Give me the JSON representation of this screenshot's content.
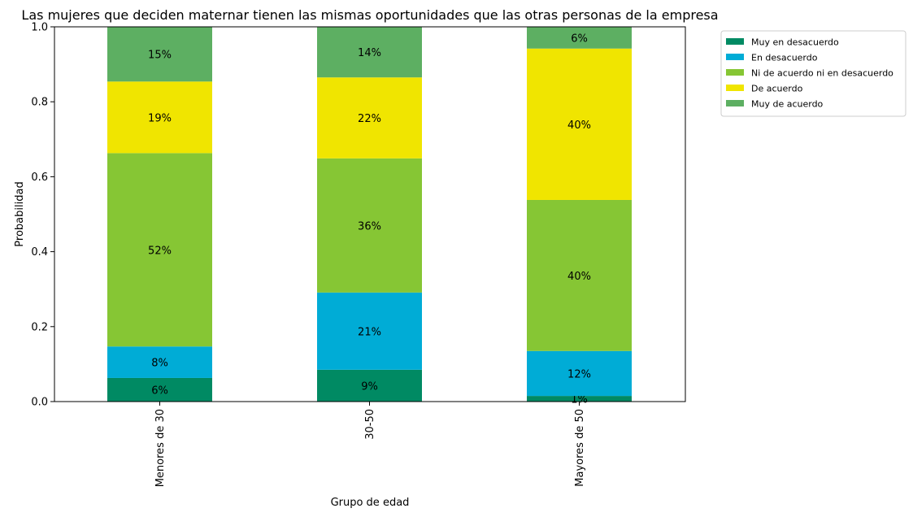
{
  "chart_data": {
    "type": "bar",
    "stacked": true,
    "title": "Las mujeres que deciden maternar tienen las mismas oportunidades que las otras personas de la empresa",
    "xlabel": "Grupo de edad",
    "ylabel": "Probabilidad",
    "ylim": [
      0,
      1
    ],
    "yticks": [
      "0.0",
      "0.2",
      "0.4",
      "0.6",
      "0.8",
      "1.0"
    ],
    "ytick_values": [
      0,
      0.2,
      0.4,
      0.6,
      0.8,
      1.0
    ],
    "categories": [
      "Menores de 30",
      "30-50",
      "Mayores de 50"
    ],
    "legend_position": "upper right outside",
    "series": [
      {
        "name": "Muy en desacuerdo",
        "color": "#008a63",
        "values": [
          0.063,
          0.085,
          0.015
        ],
        "labels": [
          "6%",
          "9%",
          "1%"
        ]
      },
      {
        "name": "En desacuerdo",
        "color": "#00acd6",
        "values": [
          0.084,
          0.206,
          0.12
        ],
        "labels": [
          "8%",
          "21%",
          "12%"
        ]
      },
      {
        "name": "Ni de acuerdo ni en desacuerdo",
        "color": "#86c634",
        "values": [
          0.516,
          0.358,
          0.403
        ],
        "labels": [
          "52%",
          "36%",
          "40%"
        ]
      },
      {
        "name": "De acuerdo",
        "color": "#f0e500",
        "values": [
          0.191,
          0.216,
          0.404
        ],
        "labels": [
          "19%",
          "22%",
          "40%"
        ]
      },
      {
        "name": "Muy de acuerdo",
        "color": "#5daf62",
        "values": [
          0.146,
          0.135,
          0.058
        ],
        "labels": [
          "15%",
          "14%",
          "6%"
        ]
      }
    ]
  }
}
